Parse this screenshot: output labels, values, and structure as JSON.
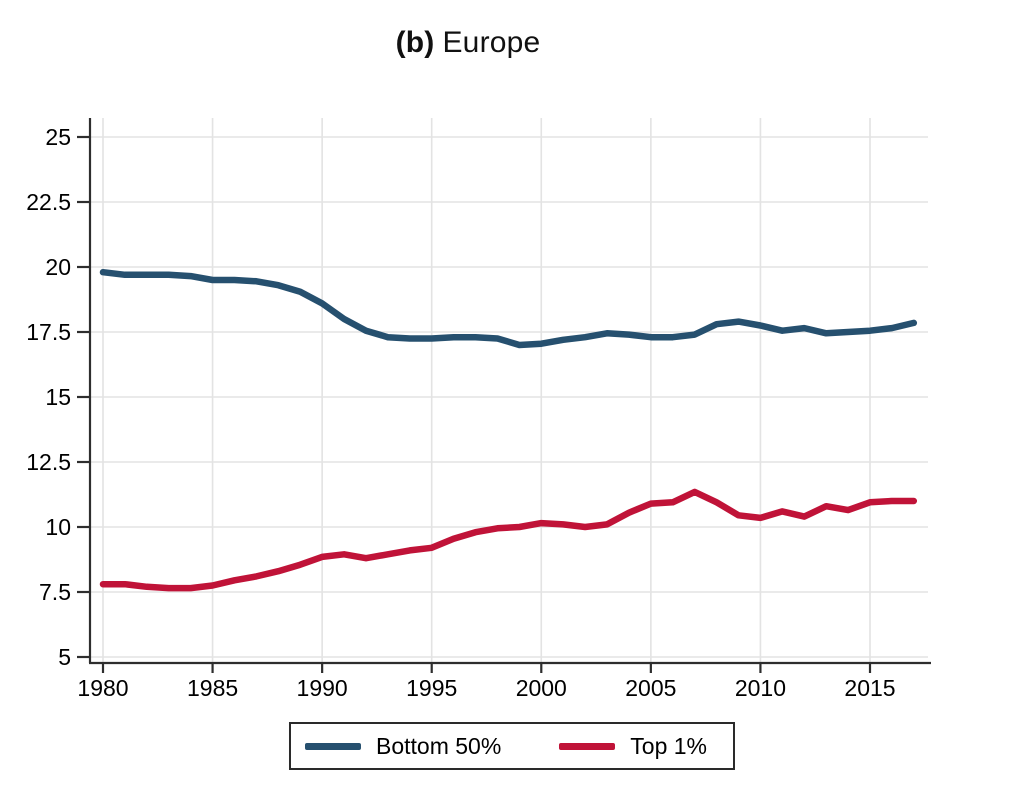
{
  "title": {
    "panel_tag": "(b)",
    "region": "Europe"
  },
  "chart_data": {
    "type": "line",
    "title": "(b) Europe",
    "xlabel": "",
    "ylabel": "",
    "x": [
      1980,
      1981,
      1982,
      1983,
      1984,
      1985,
      1986,
      1987,
      1988,
      1989,
      1990,
      1991,
      1992,
      1993,
      1994,
      1995,
      1996,
      1997,
      1998,
      1999,
      2000,
      2001,
      2002,
      2003,
      2004,
      2005,
      2006,
      2007,
      2008,
      2009,
      2010,
      2011,
      2012,
      2013,
      2014,
      2015,
      2016,
      2017
    ],
    "series": [
      {
        "name": "Bottom 50%",
        "color": "#26506f",
        "values": [
          19.8,
          19.7,
          19.7,
          19.7,
          19.65,
          19.5,
          19.5,
          19.45,
          19.3,
          19.05,
          18.6,
          18.0,
          17.55,
          17.3,
          17.25,
          17.25,
          17.3,
          17.3,
          17.25,
          17.0,
          17.05,
          17.2,
          17.3,
          17.45,
          17.4,
          17.3,
          17.3,
          17.4,
          17.8,
          17.9,
          17.75,
          17.55,
          17.65,
          17.45,
          17.5,
          17.55,
          17.65,
          17.85
        ]
      },
      {
        "name": "Top 1%",
        "color": "#c01338",
        "values": [
          7.8,
          7.8,
          7.7,
          7.65,
          7.65,
          7.75,
          7.95,
          8.1,
          8.3,
          8.55,
          8.85,
          8.95,
          8.8,
          8.95,
          9.1,
          9.2,
          9.55,
          9.8,
          9.95,
          10.0,
          10.15,
          10.1,
          10.0,
          10.1,
          10.55,
          10.9,
          10.95,
          11.35,
          10.95,
          10.45,
          10.35,
          10.6,
          10.4,
          10.8,
          10.65,
          10.95,
          11.0,
          11.0
        ]
      }
    ],
    "xticks": [
      1980,
      1985,
      1990,
      1995,
      2000,
      2005,
      2010,
      2015
    ],
    "yticks": [
      5,
      7.5,
      10,
      12.5,
      15,
      17.5,
      20,
      22.5,
      25
    ],
    "xlim": [
      1980,
      2017
    ],
    "ylim": [
      5,
      25
    ],
    "grid": true,
    "legend_position": "bottom-outside",
    "colors": {
      "grid": "#e3e3e3",
      "axis": "#2e2e2e",
      "tick_label": "#000000",
      "background": "#ffffff"
    }
  }
}
